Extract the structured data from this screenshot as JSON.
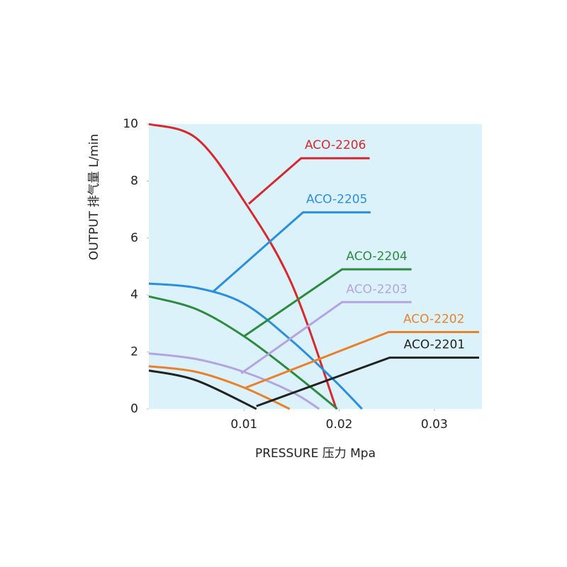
{
  "chart_data": {
    "type": "line",
    "xlabel": "PRESSURE 压力 Mpa",
    "ylabel": "OUTPUT 排气量 L/min",
    "xlim": [
      0,
      0.035
    ],
    "ylim": [
      0,
      10
    ],
    "xticks": [
      0.01,
      0.02,
      0.03
    ],
    "yticks": [
      0,
      2,
      4,
      6,
      8,
      10
    ],
    "background": "#dcf2fa",
    "series": [
      {
        "name": "ACO-2206",
        "color": "#d8282c",
        "x": [
          0,
          0.005,
          0.01,
          0.015,
          0.0197
        ],
        "values": [
          10,
          9.5,
          7.3,
          4.4,
          0
        ],
        "leader": {
          "x": [
            0.0105,
            0.016,
            0.0232
          ],
          "y": [
            7.2,
            8.8,
            8.8
          ]
        }
      },
      {
        "name": "ACO-2205",
        "color": "#2c8ee0",
        "x": [
          0,
          0.005,
          0.01,
          0.015,
          0.0195,
          0.0224
        ],
        "values": [
          4.4,
          4.25,
          3.7,
          2.4,
          1.0,
          0
        ],
        "leader": {
          "x": [
            0.0067,
            0.0162,
            0.0233
          ],
          "y": [
            4.1,
            6.9,
            6.9
          ]
        }
      },
      {
        "name": "ACO-2204",
        "color": "#2e8a3e",
        "x": [
          0,
          0.005,
          0.01,
          0.015,
          0.0198
        ],
        "values": [
          3.95,
          3.5,
          2.55,
          1.3,
          0
        ],
        "leader": {
          "x": [
            0.01,
            0.0203,
            0.0276
          ],
          "y": [
            2.55,
            4.9,
            4.9
          ]
        }
      },
      {
        "name": "ACO-2203",
        "color": "#b4a4e2",
        "x": [
          0,
          0.005,
          0.01,
          0.015,
          0.0179
        ],
        "values": [
          1.95,
          1.75,
          1.3,
          0.6,
          0
        ],
        "leader": {
          "x": [
            0.0097,
            0.0203,
            0.0276
          ],
          "y": [
            1.25,
            3.75,
            3.75
          ]
        }
      },
      {
        "name": "ACO-2202",
        "color": "#e8822a",
        "x": [
          0,
          0.005,
          0.01,
          0.0148
        ],
        "values": [
          1.5,
          1.3,
          0.75,
          0
        ],
        "leader": {
          "x": [
            0.0102,
            0.0252,
            0.0347
          ],
          "y": [
            0.75,
            2.7,
            2.7
          ]
        }
      },
      {
        "name": "ACO-2201",
        "color": "#222222",
        "x": [
          0,
          0.005,
          0.0113
        ],
        "values": [
          1.35,
          1.0,
          0
        ],
        "leader": {
          "x": [
            0.0113,
            0.0253,
            0.0347
          ],
          "y": [
            0.1,
            1.8,
            1.8
          ]
        }
      }
    ]
  }
}
